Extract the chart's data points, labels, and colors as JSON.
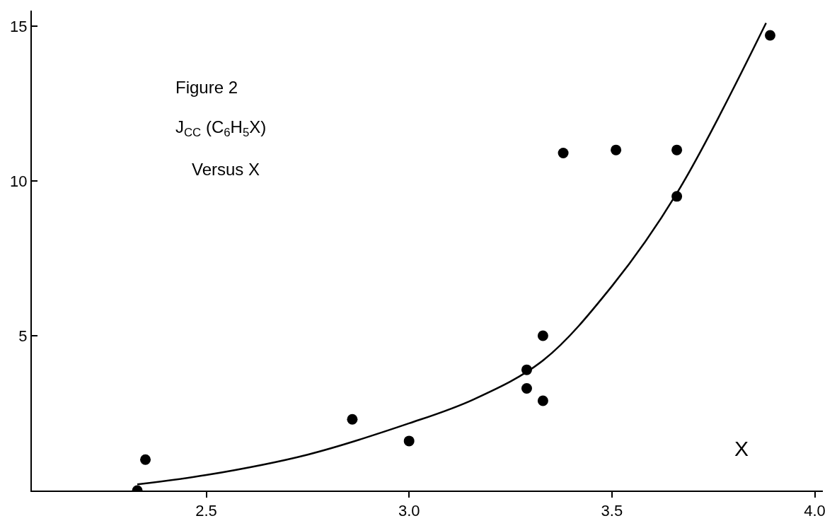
{
  "chart_data": {
    "type": "scatter",
    "xlabel": "X",
    "annotations": [
      "Figure 2",
      "J$_{CC}$ (C$_{6}$H$_{5}$X)",
      "Versus X"
    ],
    "xlim": [
      2.07,
      4.02
    ],
    "ylim": [
      0,
      15.5
    ],
    "xticks": [
      2.5,
      {
        "value": 3.0,
        "label": "3.0"
      },
      3.5,
      {
        "value": 4.0,
        "label": "4.0"
      }
    ],
    "yticks": [
      5,
      10,
      15
    ],
    "series": [
      {
        "color": "#000000",
        "marker": "circle",
        "x": [
          2.33,
          2.35,
          2.86,
          3.0,
          3.29,
          3.29,
          3.33,
          3.33,
          3.38,
          3.51,
          3.66,
          3.66,
          3.89
        ],
        "values": [
          0.0,
          1.0,
          2.3,
          1.6,
          3.3,
          3.9,
          2.9,
          5.0,
          10.9,
          11.0,
          11.0,
          9.5,
          14.7
        ]
      },
      {
        "type": "line",
        "color": "#000000",
        "line_style": "solid",
        "marker": "none",
        "x": [
          2.33,
          2.5,
          2.75,
          3.0,
          3.16,
          3.33,
          3.5,
          3.66,
          3.88
        ],
        "values": [
          0.2,
          0.5,
          1.16,
          2.17,
          2.95,
          4.2,
          6.6,
          9.6,
          15.1
        ]
      }
    ]
  }
}
